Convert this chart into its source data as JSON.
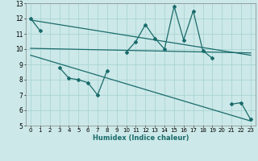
{
  "xlabel": "Humidex (Indice chaleur)",
  "xlim": [
    -0.5,
    23.5
  ],
  "ylim": [
    5,
    13
  ],
  "yticks": [
    5,
    6,
    7,
    8,
    9,
    10,
    11,
    12,
    13
  ],
  "xticks": [
    0,
    1,
    2,
    3,
    4,
    5,
    6,
    7,
    8,
    9,
    10,
    11,
    12,
    13,
    14,
    15,
    16,
    17,
    18,
    19,
    20,
    21,
    22,
    23
  ],
  "background_color": "#cce8e8",
  "grid_color": "#aad4d4",
  "line_color": "#1a6b6b",
  "line1_x": [
    0,
    1,
    10,
    11,
    12,
    13,
    14,
    15,
    16,
    17,
    18,
    19
  ],
  "line1_y": [
    12.0,
    11.2,
    9.8,
    10.5,
    11.6,
    10.7,
    10.0,
    12.8,
    10.6,
    12.5,
    9.9,
    9.4
  ],
  "line2_x": [
    3,
    4,
    5,
    6,
    7,
    8,
    21,
    22,
    23
  ],
  "line2_y": [
    8.8,
    8.1,
    8.0,
    7.8,
    7.0,
    8.6,
    6.4,
    6.5,
    5.4
  ],
  "trend1_x": [
    0,
    23
  ],
  "trend1_y": [
    11.9,
    9.6
  ],
  "trend2_x": [
    0,
    23
  ],
  "trend2_y": [
    10.05,
    9.75
  ],
  "trend3_x": [
    0,
    23
  ],
  "trend3_y": [
    9.6,
    5.3
  ]
}
